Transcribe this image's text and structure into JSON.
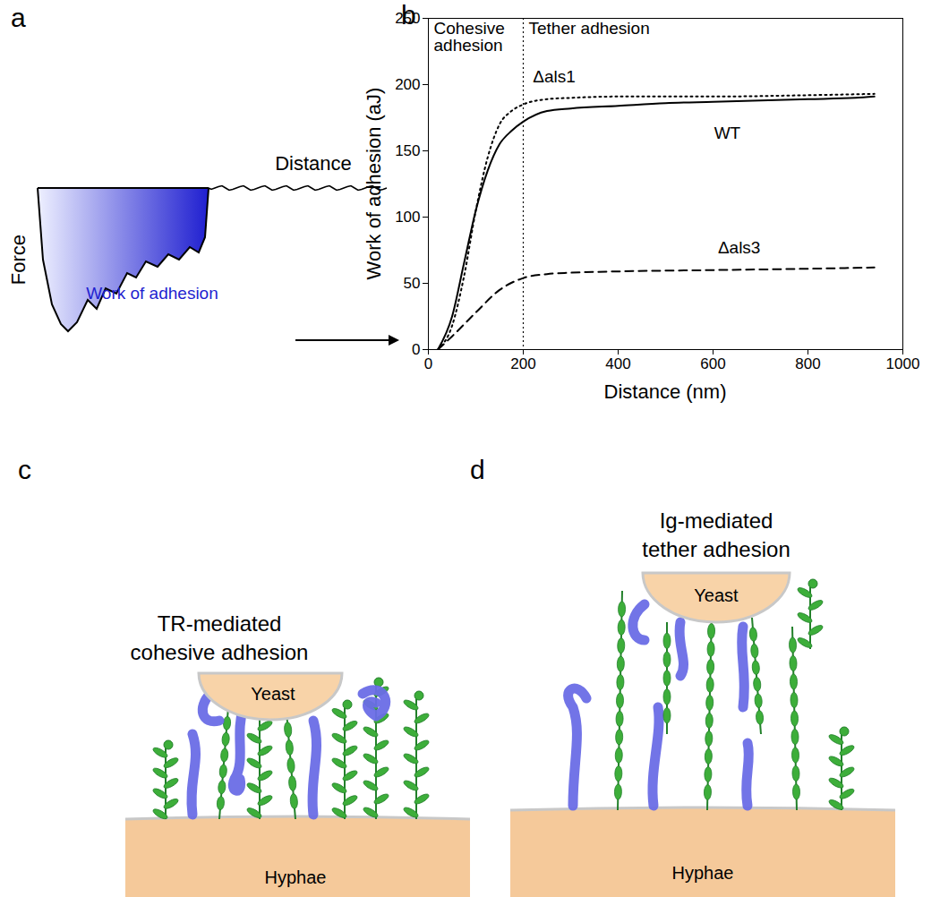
{
  "panels": {
    "a": {
      "label": "a",
      "y_label": "Force",
      "x_label": "Distance",
      "area_label": "Work of adhesion"
    },
    "c": {
      "label": "c",
      "title": "TR-mediated\ncohesive adhesion",
      "top": "Yeast",
      "bottom": "Hyphae"
    },
    "d": {
      "label": "d",
      "title": "Ig-mediated\ntether adhesion",
      "top": "Yeast",
      "bottom": "Hyphae"
    }
  },
  "chart_data": {
    "label": "b",
    "type": "line",
    "x_label": "Distance (nm)",
    "y_label": "Work of adhesion (aJ)",
    "xlim": [
      0,
      1000
    ],
    "ylim": [
      0,
      250
    ],
    "xticks": [
      0,
      200,
      400,
      600,
      800,
      1000
    ],
    "yticks": [
      0,
      50,
      100,
      150,
      200,
      250
    ],
    "regions": [
      {
        "label": "Cohesive\nadhesion",
        "from": 0,
        "to": 200
      },
      {
        "label": "Tether adhesion",
        "from": 200,
        "to": 1000
      }
    ],
    "series": [
      {
        "name": "WT",
        "color": "#000000",
        "line_style": "solid",
        "x": [
          20,
          50,
          75,
          100,
          125,
          150,
          175,
          200,
          250,
          300,
          400,
          500,
          600,
          700,
          800,
          900,
          940
        ],
        "values": [
          0,
          25,
          65,
          105,
          135,
          155,
          165,
          172,
          180,
          182,
          184,
          186,
          187,
          188,
          189,
          190,
          191
        ],
        "label_x": 630,
        "label_y": 163
      },
      {
        "name": "Δals1",
        "color": "#000000",
        "line_style": "dotted",
        "x": [
          20,
          50,
          75,
          100,
          125,
          150,
          175,
          200,
          250,
          300,
          400,
          600,
          800,
          940
        ],
        "values": [
          0,
          18,
          55,
          105,
          145,
          170,
          180,
          185,
          189,
          190,
          191,
          191,
          192,
          193
        ],
        "label_x": 265,
        "label_y": 206
      },
      {
        "name": "Δals3",
        "color": "#000000",
        "line_style": "dashed",
        "x": [
          20,
          50,
          100,
          150,
          200,
          250,
          300,
          400,
          600,
          800,
          940
        ],
        "values": [
          0,
          10,
          28,
          45,
          54,
          57,
          58,
          59,
          60,
          61,
          62
        ],
        "label_x": 655,
        "label_y": 77
      }
    ]
  }
}
